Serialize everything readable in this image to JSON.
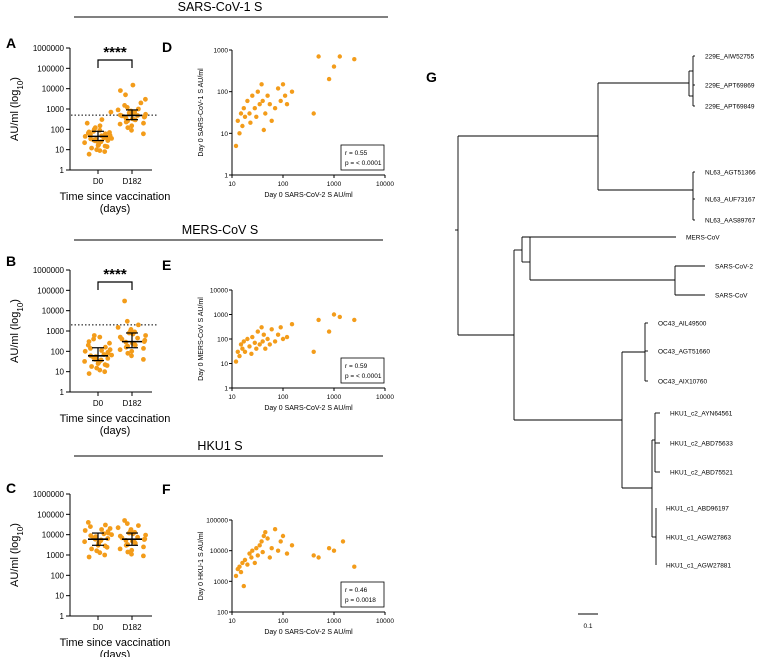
{
  "colors": {
    "point": "#F39C1A",
    "line": "#000000"
  },
  "section_titles": [
    "SARS-CoV-1 S",
    "MERS-CoV S",
    "HKU1 S"
  ],
  "panel_labels": {
    "A": "A",
    "B": "B",
    "C": "C",
    "D": "D",
    "E": "E",
    "F": "F",
    "G": "G"
  },
  "chart_data": [
    {
      "id": "A",
      "type": "scatter",
      "subtype": "dot-plot",
      "title": "SARS-CoV-1 S",
      "xlabel": "Time since vaccination\n(days)",
      "ylabel": "AU/ml (log10)",
      "yscale": "log",
      "ylim": [
        1,
        1000000
      ],
      "yticks": [
        "1",
        "10",
        "100",
        "1000",
        "10000",
        "100000",
        "1000000"
      ],
      "categories": [
        "D0",
        "D182"
      ],
      "threshold": 500,
      "significance": "****",
      "series": [
        {
          "category": "D0",
          "median": 45,
          "q1": 28,
          "q3": 80,
          "values": [
            6,
            8,
            9,
            10,
            12,
            14,
            15,
            16,
            18,
            20,
            22,
            24,
            25,
            27,
            28,
            30,
            32,
            34,
            36,
            38,
            40,
            42,
            45,
            48,
            50,
            55,
            60,
            65,
            70,
            75,
            80,
            90,
            100,
            120,
            150,
            200,
            300,
            700
          ]
        },
        {
          "category": "D182",
          "median": 480,
          "q1": 300,
          "q3": 900,
          "values": [
            60,
            90,
            120,
            150,
            180,
            200,
            230,
            260,
            290,
            300,
            330,
            360,
            400,
            430,
            460,
            480,
            500,
            550,
            600,
            650,
            700,
            750,
            800,
            900,
            1000,
            1200,
            1500,
            2000,
            3000,
            5000,
            8000,
            15000
          ]
        }
      ]
    },
    {
      "id": "B",
      "type": "scatter",
      "subtype": "dot-plot",
      "title": "MERS-CoV S",
      "xlabel": "Time since vaccination\n(days)",
      "ylabel": "AU/ml (log10)",
      "yscale": "log",
      "ylim": [
        1,
        1000000
      ],
      "yticks": [
        "1",
        "10",
        "100",
        "1000",
        "10000",
        "100000",
        "1000000"
      ],
      "categories": [
        "D0",
        "D182"
      ],
      "threshold": 2000,
      "significance": "****",
      "series": [
        {
          "category": "D0",
          "median": 60,
          "q1": 35,
          "q3": 150,
          "values": [
            8,
            10,
            12,
            15,
            18,
            20,
            22,
            25,
            28,
            30,
            32,
            35,
            38,
            40,
            45,
            50,
            55,
            60,
            65,
            70,
            80,
            90,
            100,
            110,
            120,
            140,
            160,
            200,
            250,
            300,
            400,
            500,
            600
          ]
        },
        {
          "category": "D182",
          "median": 300,
          "q1": 150,
          "q3": 800,
          "values": [
            40,
            60,
            80,
            100,
            120,
            140,
            160,
            180,
            200,
            220,
            250,
            280,
            300,
            350,
            400,
            450,
            500,
            600,
            700,
            800,
            900,
            1000,
            1200,
            1500,
            2000,
            3000,
            30000
          ]
        }
      ]
    },
    {
      "id": "C",
      "type": "scatter",
      "subtype": "dot-plot",
      "title": "HKU1 S",
      "xlabel": "Time since vaccination\n(days)",
      "ylabel": "AU/ml (log10)",
      "yscale": "log",
      "ylim": [
        1,
        1000000
      ],
      "yticks": [
        "1",
        "10",
        "100",
        "1000",
        "10000",
        "100000",
        "1000000"
      ],
      "categories": [
        "D0",
        "D182"
      ],
      "series": [
        {
          "category": "D0",
          "median": 6000,
          "q1": 3000,
          "q3": 12000,
          "values": [
            800,
            1000,
            1300,
            1600,
            2000,
            2400,
            2800,
            3000,
            3500,
            4000,
            4500,
            5000,
            5500,
            6000,
            6500,
            7000,
            8000,
            9000,
            10000,
            11000,
            12000,
            14000,
            16000,
            18000,
            20000,
            25000,
            30000,
            40000
          ]
        },
        {
          "category": "D182",
          "median": 6000,
          "q1": 3000,
          "q3": 12000,
          "values": [
            900,
            1100,
            1400,
            1700,
            2000,
            2500,
            3000,
            3300,
            3800,
            4200,
            4800,
            5200,
            5800,
            6200,
            7000,
            7500,
            8500,
            9500,
            11000,
            12000,
            13000,
            15000,
            18000,
            22000,
            28000,
            35000,
            50000
          ]
        }
      ]
    },
    {
      "id": "D",
      "type": "scatter",
      "xlabel": "Day 0 SARS-CoV-2 S AU/ml",
      "ylabel": "Day 0 SARS-CoV-1 S AU/ml",
      "xscale": "log",
      "yscale": "log",
      "xlim": [
        10,
        10000
      ],
      "ylim": [
        1,
        1000
      ],
      "xticks": [
        "10",
        "100",
        "1000",
        "10000"
      ],
      "yticks": [
        "1",
        "10",
        "100",
        "1000"
      ],
      "stats": [
        "r = 0.55",
        "p = < 0.0001"
      ],
      "x": [
        12,
        13,
        14,
        15,
        16,
        17,
        18,
        20,
        22,
        23,
        25,
        28,
        30,
        32,
        35,
        38,
        40,
        42,
        45,
        50,
        55,
        60,
        70,
        80,
        90,
        100,
        110,
        120,
        150,
        400,
        500,
        800,
        1000,
        1300,
        2500
      ],
      "y": [
        5,
        20,
        10,
        30,
        15,
        40,
        25,
        60,
        30,
        18,
        80,
        40,
        25,
        100,
        50,
        150,
        60,
        12,
        30,
        80,
        50,
        20,
        40,
        120,
        60,
        150,
        80,
        50,
        100,
        30,
        700,
        200,
        400,
        700,
        600
      ]
    },
    {
      "id": "E",
      "type": "scatter",
      "xlabel": "Day 0 SARS-CoV-2 S AU/ml",
      "ylabel": "Day 0 MERS-CoV S AU/ml",
      "xscale": "log",
      "yscale": "log",
      "xlim": [
        10,
        10000
      ],
      "ylim": [
        1,
        10000
      ],
      "xticks": [
        "10",
        "100",
        "1000",
        "10000"
      ],
      "yticks": [
        "1",
        "10",
        "100",
        "1000",
        "10000"
      ],
      "stats": [
        "r = 0.59",
        "p = < 0.0001"
      ],
      "x": [
        12,
        13,
        14,
        15,
        16,
        17,
        18,
        20,
        22,
        24,
        25,
        28,
        30,
        32,
        35,
        38,
        40,
        42,
        45,
        50,
        55,
        60,
        70,
        80,
        90,
        100,
        120,
        150,
        400,
        500,
        800,
        1000,
        1300,
        2500
      ],
      "y": [
        12,
        30,
        20,
        60,
        40,
        80,
        30,
        100,
        50,
        25,
        120,
        70,
        40,
        200,
        60,
        300,
        80,
        150,
        40,
        100,
        60,
        250,
        80,
        150,
        300,
        100,
        120,
        400,
        30,
        600,
        200,
        1000,
        800,
        600
      ]
    },
    {
      "id": "F",
      "type": "scatter",
      "xlabel": "Day 0 SARS-CoV-2 S AU/ml",
      "ylabel": "Day 0 HKU-1 S AU/ml",
      "xscale": "log",
      "yscale": "log",
      "xlim": [
        10,
        10000
      ],
      "ylim": [
        100,
        100000
      ],
      "xticks": [
        "10",
        "100",
        "1000",
        "10000"
      ],
      "yticks": [
        "100",
        "1000",
        "10000",
        "100000"
      ],
      "stats": [
        "r = 0.46",
        "p = 0.0018"
      ],
      "x": [
        12,
        13,
        14,
        15,
        16,
        17,
        18,
        20,
        22,
        24,
        25,
        28,
        30,
        32,
        35,
        38,
        40,
        42,
        45,
        50,
        55,
        60,
        70,
        80,
        90,
        100,
        120,
        150,
        400,
        500,
        800,
        1000,
        1500,
        2500
      ],
      "y": [
        1500,
        2500,
        3000,
        2000,
        4000,
        700,
        5000,
        3500,
        8000,
        6000,
        10000,
        4000,
        12000,
        7000,
        15000,
        20000,
        9000,
        30000,
        40000,
        25000,
        6000,
        12000,
        50000,
        10000,
        20000,
        30000,
        8000,
        15000,
        7000,
        6000,
        12000,
        10000,
        20000,
        3000
      ]
    },
    {
      "id": "G",
      "type": "tree",
      "scale_label": "0.1",
      "leaves": [
        "229E_AIW52755",
        "229E_APT69869",
        "229E_APT69849",
        "NL63_AGT51366",
        "NL63_AUF73167",
        "NL63_AAS89767",
        "MERS-CoV",
        "SARS-CoV-2",
        "SARS-CoV",
        "OC43_AIL49500",
        "OC43_AGT51660",
        "OC43_AIX10760",
        "HKU1_c2_AYN64561",
        "HKU1_c2_ABD75633",
        "HKU1_c2_ABD75521",
        "HKU1_c1_ABD96197",
        "HKU1_c1_AGW27863",
        "HKU1_c1_AGW27881"
      ]
    }
  ]
}
